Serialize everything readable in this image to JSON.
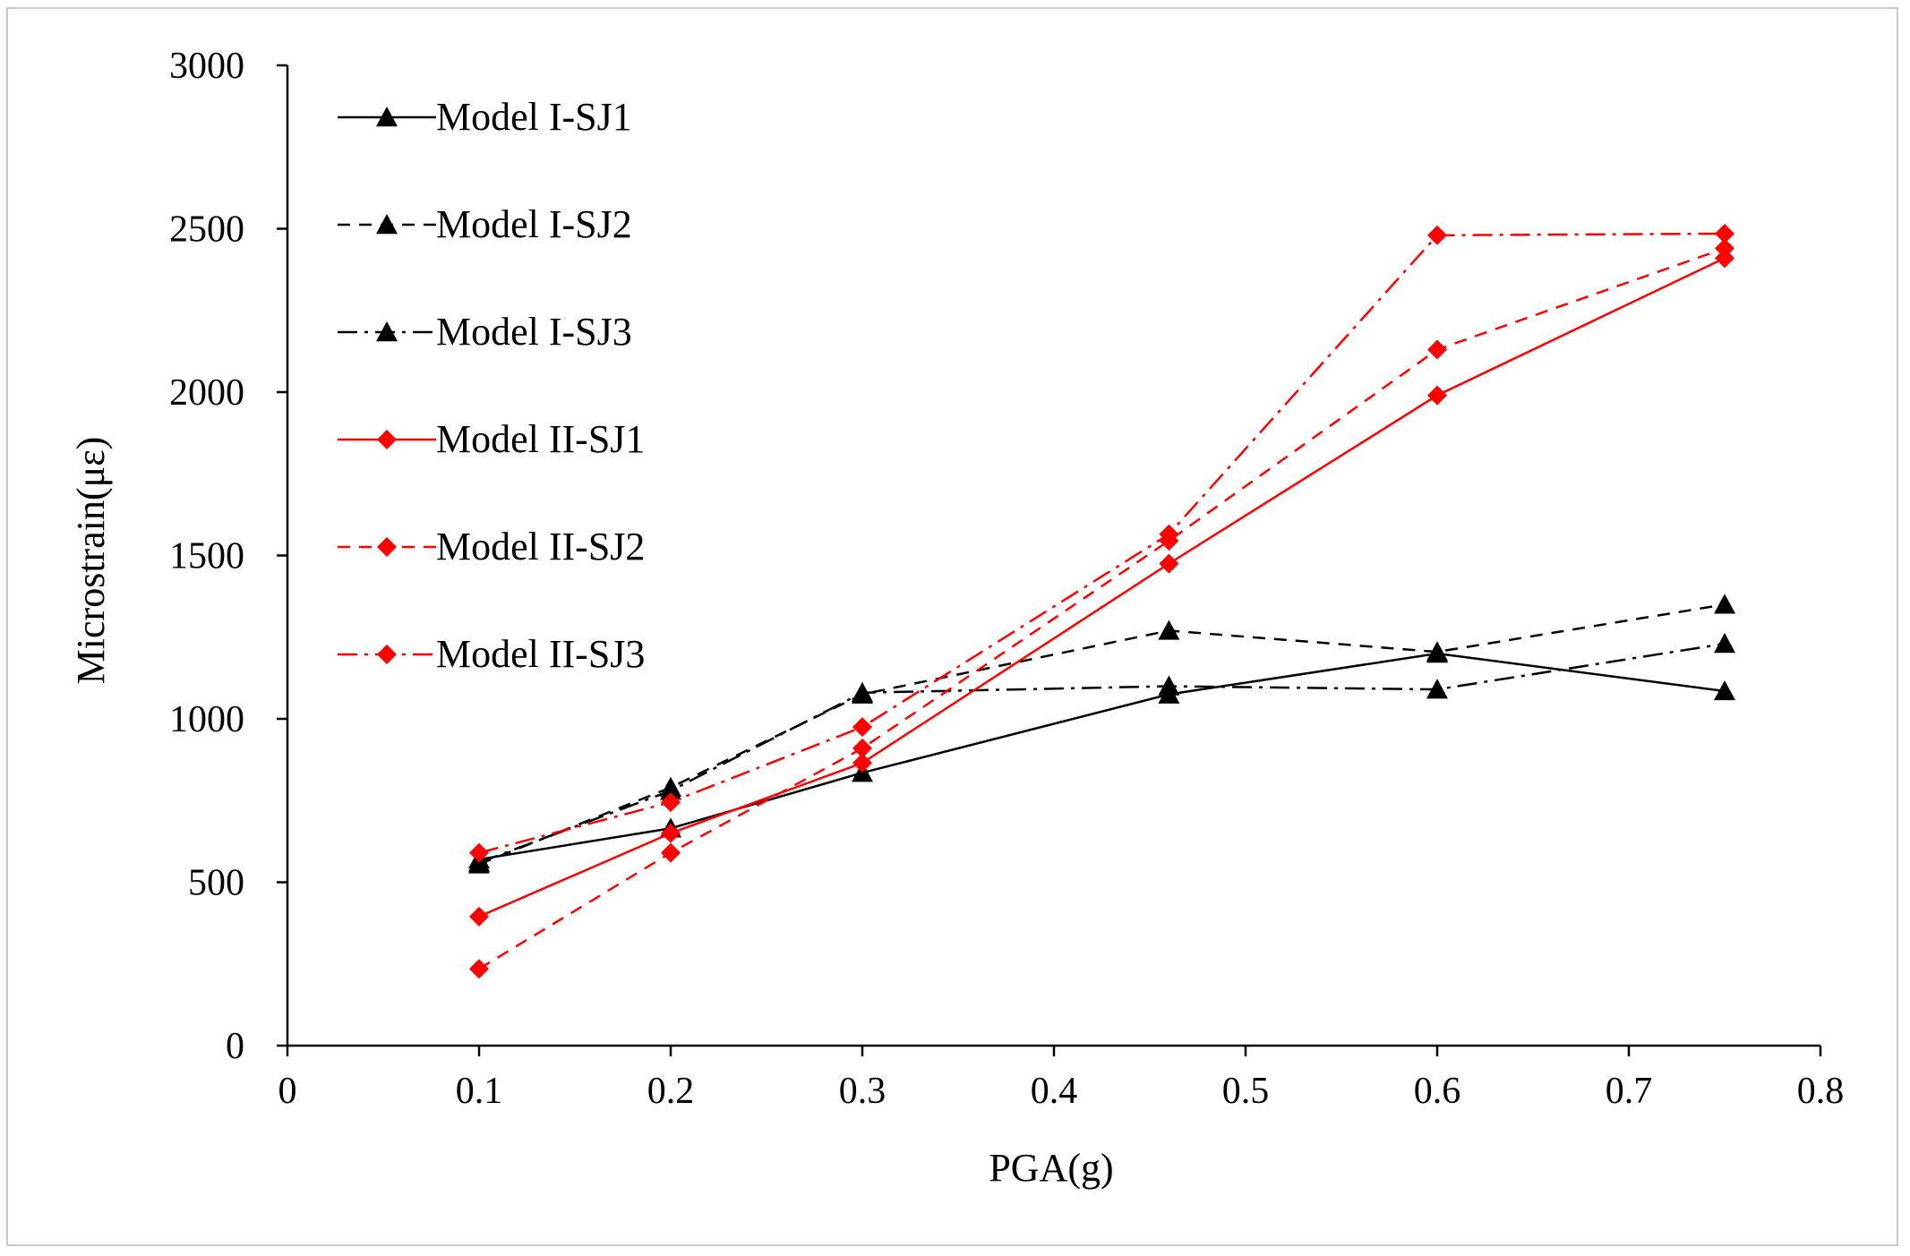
{
  "chart_data": {
    "type": "line",
    "title": "",
    "xlabel": "PGA(g)",
    "ylabel": "Microstrain(με)",
    "xlim": [
      0,
      0.8
    ],
    "ylim": [
      0,
      3000
    ],
    "xticks": [
      0,
      0.1,
      0.2,
      0.3,
      0.4,
      0.5,
      0.6,
      0.7,
      0.8
    ],
    "xtick_labels": [
      "0",
      "0.1",
      "0.2",
      "0.3",
      "0.4",
      "0.5",
      "0.6",
      "0.7",
      "0.8"
    ],
    "yticks": [
      0,
      500,
      1000,
      1500,
      2000,
      2500,
      3000
    ],
    "ytick_labels": [
      "0",
      "500",
      "1000",
      "1500",
      "2000",
      "2500",
      "3000"
    ],
    "grid": false,
    "legend_position": "top-left",
    "x": [
      0.1,
      0.2,
      0.3,
      0.46,
      0.6,
      0.75
    ],
    "series": [
      {
        "name": "Model I-SJ1",
        "color": "#000000",
        "dash": "solid",
        "marker": "triangle",
        "values": [
          570,
          665,
          835,
          1075,
          1200,
          1085
        ]
      },
      {
        "name": "Model I-SJ2",
        "color": "#000000",
        "dash": "dashed",
        "marker": "triangle",
        "values": [
          555,
          790,
          1075,
          1270,
          1205,
          1350
        ]
      },
      {
        "name": "Model I-SJ3",
        "color": "#000000",
        "dash": "dashdot",
        "marker": "triangle",
        "values": [
          560,
          780,
          1080,
          1100,
          1090,
          1230
        ]
      },
      {
        "name": "Model II-SJ1",
        "color": "#ff0000",
        "dash": "solid",
        "marker": "diamond",
        "values": [
          395,
          650,
          865,
          1475,
          1990,
          2410
        ]
      },
      {
        "name": "Model II-SJ2",
        "color": "#ff0000",
        "dash": "dashed",
        "marker": "diamond",
        "values": [
          235,
          590,
          910,
          1545,
          2130,
          2440
        ]
      },
      {
        "name": "Model II-SJ3",
        "color": "#ff0000",
        "dash": "dashdot",
        "marker": "diamond",
        "values": [
          590,
          745,
          975,
          1565,
          2480,
          2485
        ]
      }
    ]
  }
}
